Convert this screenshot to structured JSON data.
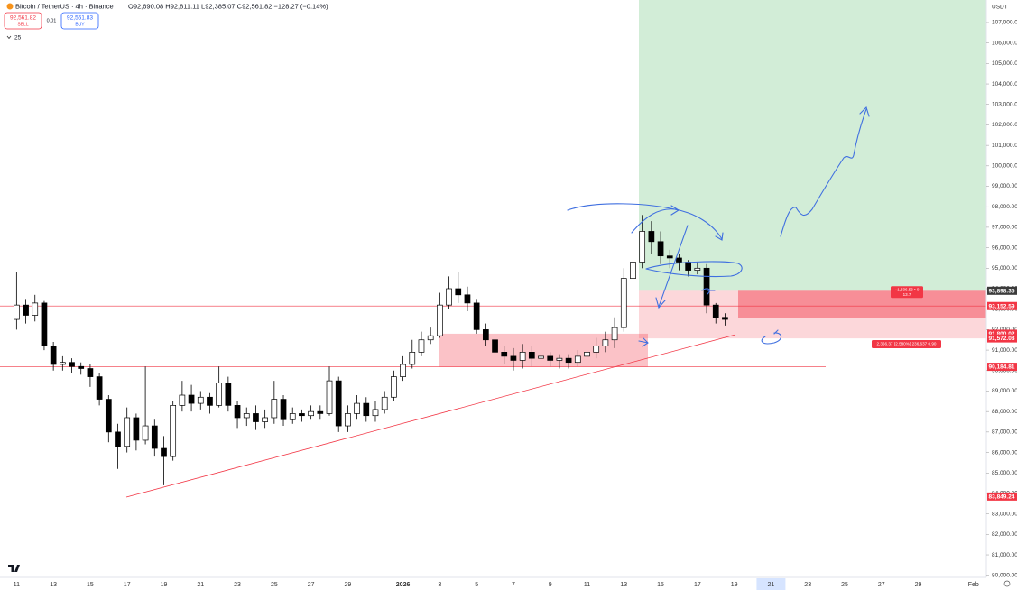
{
  "chart_data": {
    "type": "candlestick",
    "symbol": "Bitcoin / TetherUS · 4h · Binance",
    "ohlc_header": "O92,690.08 H92,811.11 L92,385.07 C92,561.82 −128.27 (−0.14%)",
    "sell_price": "92,561.82",
    "sell_label": "SELL",
    "spread": "0.01",
    "buy_price": "92,561.83",
    "buy_label": "BUY",
    "indicator": "25",
    "currency": "USDT",
    "up_color": "#ffffff",
    "down_color": "#000000",
    "wick_color": "#000000",
    "x": [
      0,
      0.5,
      1,
      1.5,
      2,
      2.5,
      3,
      3.5,
      4,
      4.5,
      5,
      5.5,
      6,
      6.5,
      7,
      7.5,
      8,
      8.5,
      9,
      9.5,
      10,
      10.5,
      11,
      11.5,
      12,
      12.5,
      13,
      13.5,
      14,
      14.5,
      15,
      15.5,
      16,
      16.5,
      17,
      17.5,
      18,
      18.5,
      19,
      19.5,
      20,
      20.5,
      21,
      21.5,
      22,
      22.5,
      23,
      23.5,
      24,
      24.5,
      25,
      25.5,
      26,
      26.5,
      27,
      27.5,
      28,
      28.5,
      29,
      29.5,
      30,
      30.5,
      31,
      31.5,
      32,
      32.5,
      33,
      33.5,
      34,
      34.5,
      35,
      35.5,
      36,
      36.5,
      37,
      37.5,
      38,
      38.5
    ],
    "candles": [
      [
        92500,
        94800,
        92000,
        93200
      ],
      [
        93200,
        93500,
        92300,
        92700
      ],
      [
        92700,
        93700,
        92400,
        93300
      ],
      [
        93300,
        93400,
        91000,
        91200
      ],
      [
        91200,
        91400,
        90000,
        90300
      ],
      [
        90300,
        90700,
        90000,
        90400
      ],
      [
        90400,
        90600,
        89900,
        90200
      ],
      [
        90200,
        90400,
        89800,
        90100
      ],
      [
        90100,
        90300,
        89200,
        89700
      ],
      [
        89700,
        89900,
        88300,
        88600
      ],
      [
        88600,
        88800,
        86500,
        87000
      ],
      [
        87000,
        87400,
        85200,
        86300
      ],
      [
        86300,
        88200,
        86000,
        87700
      ],
      [
        87700,
        87900,
        86100,
        86600
      ],
      [
        86600,
        90200,
        86400,
        87300
      ],
      [
        87300,
        87600,
        85800,
        86200
      ],
      [
        86200,
        86800,
        84400,
        85800
      ],
      [
        85800,
        88500,
        85600,
        88300
      ],
      [
        88300,
        89500,
        88000,
        88800
      ],
      [
        88800,
        89300,
        88000,
        88400
      ],
      [
        88400,
        89000,
        88100,
        88700
      ],
      [
        88700,
        88900,
        87900,
        88300
      ],
      [
        88300,
        90200,
        88200,
        89400
      ],
      [
        89400,
        89700,
        88000,
        88300
      ],
      [
        88300,
        88500,
        87200,
        87700
      ],
      [
        87700,
        88200,
        87300,
        87900
      ],
      [
        87900,
        88300,
        87100,
        87500
      ],
      [
        87500,
        88100,
        87200,
        87700
      ],
      [
        87700,
        89500,
        87400,
        88600
      ],
      [
        88600,
        88800,
        87300,
        87600
      ],
      [
        87600,
        88200,
        87400,
        87900
      ],
      [
        87900,
        88100,
        87500,
        87800
      ],
      [
        87800,
        88300,
        87600,
        88000
      ],
      [
        88000,
        88300,
        87600,
        87900
      ],
      [
        87900,
        90200,
        87800,
        89500
      ],
      [
        89500,
        89700,
        87000,
        87300
      ],
      [
        87300,
        88300,
        87000,
        87900
      ],
      [
        87900,
        88800,
        87600,
        88400
      ],
      [
        88400,
        88700,
        87500,
        87800
      ],
      [
        87800,
        88500,
        87500,
        88100
      ],
      [
        88100,
        89000,
        87900,
        88700
      ],
      [
        88700,
        90000,
        88500,
        89700
      ],
      [
        89700,
        90700,
        89500,
        90300
      ],
      [
        90300,
        91500,
        90100,
        90900
      ],
      [
        90900,
        91900,
        90700,
        91500
      ],
      [
        91500,
        92100,
        91300,
        91700
      ],
      [
        91700,
        93800,
        91600,
        93200
      ],
      [
        93200,
        94600,
        93000,
        94000
      ],
      [
        94000,
        94800,
        93300,
        93700
      ],
      [
        93700,
        94100,
        92900,
        93300
      ],
      [
        93300,
        93500,
        91800,
        92000
      ],
      [
        92000,
        92300,
        91200,
        91500
      ],
      [
        91500,
        91800,
        90400,
        90900
      ],
      [
        90900,
        91200,
        90300,
        90700
      ],
      [
        90700,
        91100,
        90000,
        90500
      ],
      [
        90500,
        91300,
        90100,
        90900
      ],
      [
        90900,
        91200,
        90200,
        90600
      ],
      [
        90600,
        91000,
        90300,
        90700
      ],
      [
        90700,
        90900,
        90200,
        90500
      ],
      [
        90500,
        90800,
        90100,
        90600
      ],
      [
        90600,
        90800,
        90100,
        90400
      ],
      [
        90400,
        91000,
        90200,
        90700
      ],
      [
        90700,
        91200,
        90400,
        90900
      ],
      [
        90900,
        91600,
        90600,
        91200
      ],
      [
        91200,
        91900,
        90900,
        91500
      ],
      [
        91500,
        92600,
        91100,
        92100
      ],
      [
        92100,
        95000,
        91900,
        94500
      ],
      [
        94500,
        96500,
        94300,
        95300
      ],
      [
        95300,
        97600,
        95000,
        96800
      ],
      [
        96800,
        97300,
        95700,
        96300
      ],
      [
        96300,
        96800,
        95200,
        95600
      ],
      [
        95600,
        95900,
        95000,
        95500
      ],
      [
        95500,
        95700,
        94900,
        95300
      ],
      [
        95300,
        95400,
        94600,
        94900
      ],
      [
        94900,
        95300,
        94700,
        95000
      ],
      [
        95000,
        95200,
        92800,
        93200
      ],
      [
        93200,
        93300,
        92300,
        92600
      ],
      [
        92600,
        92800,
        92200,
        92500
      ]
    ],
    "xlim": [
      -0.9,
      52.7
    ],
    "xticks": [
      {
        "value": 0,
        "label": "11"
      },
      {
        "value": 2,
        "label": "13"
      },
      {
        "value": 4,
        "label": "15"
      },
      {
        "value": 6,
        "label": "17"
      },
      {
        "value": 8,
        "label": "19"
      },
      {
        "value": 10,
        "label": "21"
      },
      {
        "value": 12,
        "label": "23"
      },
      {
        "value": 14,
        "label": "25"
      },
      {
        "value": 16,
        "label": "27"
      },
      {
        "value": 18,
        "label": "29"
      },
      {
        "value": 21,
        "label": "2026"
      },
      {
        "value": 23,
        "label": "3"
      },
      {
        "value": 25,
        "label": "5"
      },
      {
        "value": 27,
        "label": "7"
      },
      {
        "value": 29,
        "label": "9"
      },
      {
        "value": 31,
        "label": "11"
      },
      {
        "value": 33,
        "label": "13"
      },
      {
        "value": 35,
        "label": "15"
      },
      {
        "value": 37,
        "label": "17"
      },
      {
        "value": 39,
        "label": "19"
      },
      {
        "value": 41,
        "label": "21"
      },
      {
        "value": 43,
        "label": "23"
      },
      {
        "value": 45,
        "label": "25"
      },
      {
        "value": 47,
        "label": "27"
      },
      {
        "value": 49,
        "label": "29"
      },
      {
        "value": 52,
        "label": "Feb"
      }
    ],
    "highlight_xtick": 20,
    "ylim": [
      79900,
      108100
    ],
    "yticks": [
      {
        "value": 80000,
        "label": "80,000.00"
      },
      {
        "value": 81000,
        "label": "81,000.00"
      },
      {
        "value": 82000,
        "label": "82,000.00"
      },
      {
        "value": 83000,
        "label": "83,000.00"
      },
      {
        "value": 84000,
        "label": "84,000.00"
      },
      {
        "value": 85000,
        "label": "85,000.00"
      },
      {
        "value": 86000,
        "label": "86,000.00"
      },
      {
        "value": 87000,
        "label": "87,000.00"
      },
      {
        "value": 88000,
        "label": "88,000.00"
      },
      {
        "value": 89000,
        "label": "89,000.00"
      },
      {
        "value": 90000,
        "label": "90,000.00"
      },
      {
        "value": 91000,
        "label": "91,000.00"
      },
      {
        "value": 92000,
        "label": "92,000.00"
      },
      {
        "value": 93000,
        "label": "93,000.00"
      },
      {
        "value": 94000,
        "label": "94,000.00"
      },
      {
        "value": 95000,
        "label": "95,000.00"
      },
      {
        "value": 96000,
        "label": "96,000.00"
      },
      {
        "value": 97000,
        "label": "97,000.00"
      },
      {
        "value": 98000,
        "label": "98,000.00"
      },
      {
        "value": 99000,
        "label": "99,000.00"
      },
      {
        "value": 100000,
        "label": "100,000.00"
      },
      {
        "value": 101000,
        "label": "101,000.00"
      },
      {
        "value": 102000,
        "label": "102,000.00"
      },
      {
        "value": 103000,
        "label": "103,000.00"
      },
      {
        "value": 104000,
        "label": "104,000.00"
      },
      {
        "value": 105000,
        "label": "105,000.00"
      },
      {
        "value": 106000,
        "label": "106,000.00"
      },
      {
        "value": 107000,
        "label": "107,000.00"
      }
    ],
    "price_labels": [
      {
        "value": 93898.35,
        "label": "93,898.35",
        "color": "#3b3b3b"
      },
      {
        "value": 93152.59,
        "label": "93,152.59",
        "color": "#f23645"
      },
      {
        "value": 91800.02,
        "label": "91,800.02",
        "color": "#f23645"
      },
      {
        "value": 91572.08,
        "label": "91,572.08",
        "color": "#f23645"
      },
      {
        "value": 90184.81,
        "label": "90,184.81",
        "color": "#f23645"
      },
      {
        "value": 83849.24,
        "label": "83,849.24",
        "color": "#f23645"
      }
    ],
    "current_price": 92561.82,
    "stop_label": "−1,336.53 • 0",
    "stop_label_2": "13.7",
    "target_label": "2,366.37 (2.580%) 236,637 0.90"
  }
}
